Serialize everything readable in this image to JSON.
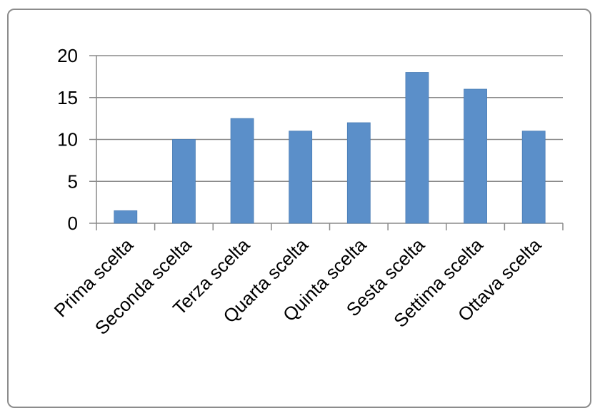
{
  "chart_data": {
    "type": "bar",
    "categories": [
      "Prima scelta",
      "Seconda scelta",
      "Terza scelta",
      "Quarta scelta",
      "Quinta scelta",
      "Sesta scelta",
      "Settima scelta",
      "Ottava scelta"
    ],
    "values": [
      1.5,
      10,
      12.5,
      11,
      12,
      18,
      16,
      11
    ],
    "ylim": [
      0,
      20
    ],
    "yticks": [
      "0",
      "5",
      "10",
      "15",
      "20"
    ],
    "grid": true,
    "legend": "none",
    "colors": {
      "bar": "#5b8fc9",
      "bar_edge": "#4a7db5",
      "grid": "#8a8a8a",
      "axis": "#8a8a8a",
      "frame": "#8c8c8c"
    }
  }
}
